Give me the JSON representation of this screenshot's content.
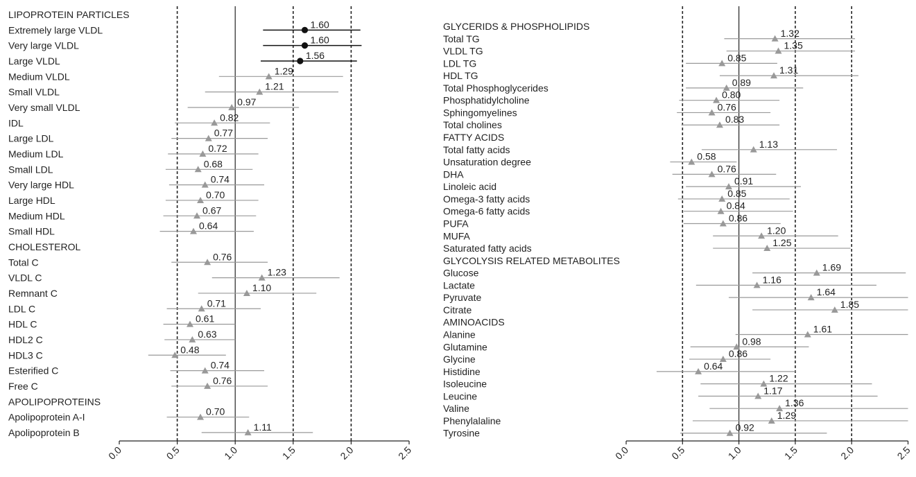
{
  "chart_data": [
    {
      "type": "forest",
      "xlim": [
        0.0,
        2.5
      ],
      "x_ticks": [
        "0.0",
        "0.5",
        "1.0",
        "1.5",
        "2.0",
        "2.5"
      ],
      "reference_lines": {
        "solid": 1.0,
        "dashed": [
          0.5,
          1.5,
          2.0
        ]
      },
      "rows": [
        {
          "label": "LIPOPROTEIN PARTICLES",
          "header": true
        },
        {
          "label": "Extremely large VLDL",
          "value": 1.6,
          "value_label": "1.60",
          "ci": [
            1.24,
            2.08
          ],
          "significant": true
        },
        {
          "label": "Very large VLDL",
          "value": 1.6,
          "value_label": "1.60",
          "ci": [
            1.24,
            2.09
          ],
          "significant": true
        },
        {
          "label": "Large VLDL",
          "value": 1.56,
          "value_label": "1.56",
          "ci": [
            1.22,
            2.05
          ],
          "significant": true
        },
        {
          "label": "Medium VLDL",
          "value": 1.29,
          "value_label": "1.29",
          "ci": [
            0.86,
            1.93
          ]
        },
        {
          "label": "Small VLDL",
          "value": 1.21,
          "value_label": "1.21",
          "ci": [
            0.74,
            1.89
          ]
        },
        {
          "label": "Very small VLDL",
          "value": 0.97,
          "value_label": "0.97",
          "ci": [
            0.59,
            1.55
          ]
        },
        {
          "label": "IDL",
          "value": 0.82,
          "value_label": "0.82",
          "ci": [
            0.48,
            1.3
          ]
        },
        {
          "label": "Large LDL",
          "value": 0.77,
          "value_label": "0.77",
          "ci": [
            0.45,
            1.28
          ]
        },
        {
          "label": "Medium LDL",
          "value": 0.72,
          "value_label": "0.72",
          "ci": [
            0.42,
            1.2
          ]
        },
        {
          "label": "Small LDL",
          "value": 0.68,
          "value_label": "0.68",
          "ci": [
            0.4,
            1.15
          ]
        },
        {
          "label": "Very large HDL",
          "value": 0.74,
          "value_label": "0.74",
          "ci": [
            0.43,
            1.25
          ]
        },
        {
          "label": "Large HDL",
          "value": 0.7,
          "value_label": "0.70",
          "ci": [
            0.4,
            1.2
          ]
        },
        {
          "label": "Medium HDL",
          "value": 0.67,
          "value_label": "0.67",
          "ci": [
            0.38,
            1.18
          ]
        },
        {
          "label": "Small HDL",
          "value": 0.64,
          "value_label": "0.64",
          "ci": [
            0.35,
            1.16
          ]
        },
        {
          "label": "CHOLESTEROL",
          "header": true
        },
        {
          "label": "Total C",
          "value": 0.76,
          "value_label": "0.76",
          "ci": [
            0.45,
            1.28
          ]
        },
        {
          "label": "VLDL C",
          "value": 1.23,
          "value_label": "1.23",
          "ci": [
            0.8,
            1.9
          ]
        },
        {
          "label": "Remnant C",
          "value": 1.1,
          "value_label": "1.10",
          "ci": [
            0.68,
            1.7
          ]
        },
        {
          "label": "LDL C",
          "value": 0.71,
          "value_label": "0.71",
          "ci": [
            0.41,
            1.22
          ]
        },
        {
          "label": "HDL C",
          "value": 0.61,
          "value_label": "0.61",
          "ci": [
            0.38,
            1.0
          ]
        },
        {
          "label": "HDL2 C",
          "value": 0.63,
          "value_label": "0.63",
          "ci": [
            0.39,
            1.0
          ]
        },
        {
          "label": "HDL3 C",
          "value": 0.48,
          "value_label": "0.48",
          "ci": [
            0.25,
            0.92
          ]
        },
        {
          "label": "Esterified C",
          "value": 0.74,
          "value_label": "0.74",
          "ci": [
            0.44,
            1.25
          ]
        },
        {
          "label": "Free C",
          "value": 0.76,
          "value_label": "0.76",
          "ci": [
            0.45,
            1.28
          ]
        },
        {
          "label": "APOLIPOPROTEINS",
          "header": true
        },
        {
          "label": "Apolipoprotein A-I",
          "value": 0.7,
          "value_label": "0.70",
          "ci": [
            0.41,
            1.12
          ]
        },
        {
          "label": "Apolipoprotein B",
          "value": 1.11,
          "value_label": "1.11",
          "ci": [
            0.71,
            1.67
          ]
        }
      ]
    },
    {
      "type": "forest",
      "xlim": [
        0.0,
        2.5
      ],
      "x_ticks": [
        "0.0",
        "0.5",
        "1.0",
        "1.5",
        "2.0",
        "2.5"
      ],
      "reference_lines": {
        "solid": 1.0,
        "dashed": [
          0.5,
          1.5,
          2.0
        ]
      },
      "rows": [
        {
          "label": "GLYCERIDS & PHOSPHOLIPIDS",
          "header": true
        },
        {
          "label": "Total TG",
          "value": 1.32,
          "value_label": "1.32",
          "ci": [
            0.87,
            2.03
          ]
        },
        {
          "label": "VLDL TG",
          "value": 1.35,
          "value_label": "1.35",
          "ci": [
            0.89,
            2.03
          ]
        },
        {
          "label": "LDL TG",
          "value": 0.85,
          "value_label": "0.85",
          "ci": [
            0.53,
            1.34
          ]
        },
        {
          "label": "HDL TG",
          "value": 1.31,
          "value_label": "1.31",
          "ci": [
            0.83,
            2.06
          ]
        },
        {
          "label": "Total Phosphoglycerides",
          "value": 0.89,
          "value_label": "0.89",
          "ci": [
            0.53,
            1.57
          ]
        },
        {
          "label": "Phosphatidylcholine",
          "value": 0.8,
          "value_label": "0.80",
          "ci": [
            0.47,
            1.36
          ]
        },
        {
          "label": "Sphingomyelines",
          "value": 0.76,
          "value_label": "0.76",
          "ci": [
            0.45,
            1.28
          ]
        },
        {
          "label": "Total cholines",
          "value": 0.83,
          "value_label": "0.83",
          "ci": [
            0.49,
            1.36
          ]
        },
        {
          "label": "FATTY ACIDS",
          "header": true
        },
        {
          "label": "Total fatty acids",
          "value": 1.13,
          "value_label": "1.13",
          "ci": [
            0.67,
            1.87
          ]
        },
        {
          "label": "Unsaturation degree",
          "value": 0.58,
          "value_label": "0.58",
          "ci": [
            0.39,
            0.98
          ]
        },
        {
          "label": "DHA",
          "value": 0.76,
          "value_label": "0.76",
          "ci": [
            0.41,
            1.33
          ]
        },
        {
          "label": "Linoleic acid",
          "value": 0.91,
          "value_label": "0.91",
          "ci": [
            0.53,
            1.55
          ]
        },
        {
          "label": "Omega-3 fatty acids",
          "value": 0.85,
          "value_label": "0.85",
          "ci": [
            0.46,
            1.45
          ]
        },
        {
          "label": "Omega-6 fatty acids",
          "value": 0.84,
          "value_label": "0.84",
          "ci": [
            0.51,
            1.48
          ]
        },
        {
          "label": "PUFA",
          "value": 0.86,
          "value_label": "0.86",
          "ci": [
            0.51,
            1.37
          ]
        },
        {
          "label": "MUFA",
          "value": 1.2,
          "value_label": "1.20",
          "ci": [
            0.77,
            1.88
          ]
        },
        {
          "label": "Saturated fatty acids",
          "value": 1.25,
          "value_label": "1.25",
          "ci": [
            0.77,
            1.99
          ]
        },
        {
          "label": "GLYCOLYSIS RELATED METABOLITES",
          "header": true
        },
        {
          "label": "Glucose",
          "value": 1.69,
          "value_label": "1.69",
          "ci": [
            1.12,
            2.48
          ]
        },
        {
          "label": "Lactate",
          "value": 1.16,
          "value_label": "1.16",
          "ci": [
            0.62,
            2.22
          ]
        },
        {
          "label": "Pyruvate",
          "value": 1.64,
          "value_label": "1.64",
          "ci": [
            0.91,
            2.5
          ]
        },
        {
          "label": "Citrate",
          "value": 1.85,
          "value_label": "1.85",
          "ci": [
            1.12,
            2.5
          ]
        },
        {
          "label": "AMINOACIDS",
          "header": true
        },
        {
          "label": "Alanine",
          "value": 1.61,
          "value_label": "1.61",
          "ci": [
            0.97,
            2.5
          ]
        },
        {
          "label": "Glutamine",
          "value": 0.98,
          "value_label": "0.98",
          "ci": [
            0.57,
            1.62
          ]
        },
        {
          "label": "Glycine",
          "value": 0.86,
          "value_label": "0.86",
          "ci": [
            0.56,
            1.28
          ]
        },
        {
          "label": "Histidine",
          "value": 0.64,
          "value_label": "0.64",
          "ci": [
            0.27,
            1.5
          ]
        },
        {
          "label": "Isoleucine",
          "value": 1.22,
          "value_label": "1.22",
          "ci": [
            0.66,
            2.18
          ]
        },
        {
          "label": "Leucine",
          "value": 1.17,
          "value_label": "1.17",
          "ci": [
            0.64,
            2.23
          ]
        },
        {
          "label": "Valine",
          "value": 1.36,
          "value_label": "1.36",
          "ci": [
            0.74,
            2.5
          ]
        },
        {
          "label": "Phenylalaline",
          "value": 1.29,
          "value_label": "1.29",
          "ci": [
            0.59,
            2.5
          ]
        },
        {
          "label": "Tyrosine",
          "value": 0.92,
          "value_label": "0.92",
          "ci": [
            0.48,
            1.78
          ]
        }
      ]
    }
  ],
  "colors": {
    "marker": "#999999",
    "significant_marker": "#111111",
    "ci_line": "#999999",
    "significant_ci_line": "#111111",
    "reference_line": "#222222"
  }
}
